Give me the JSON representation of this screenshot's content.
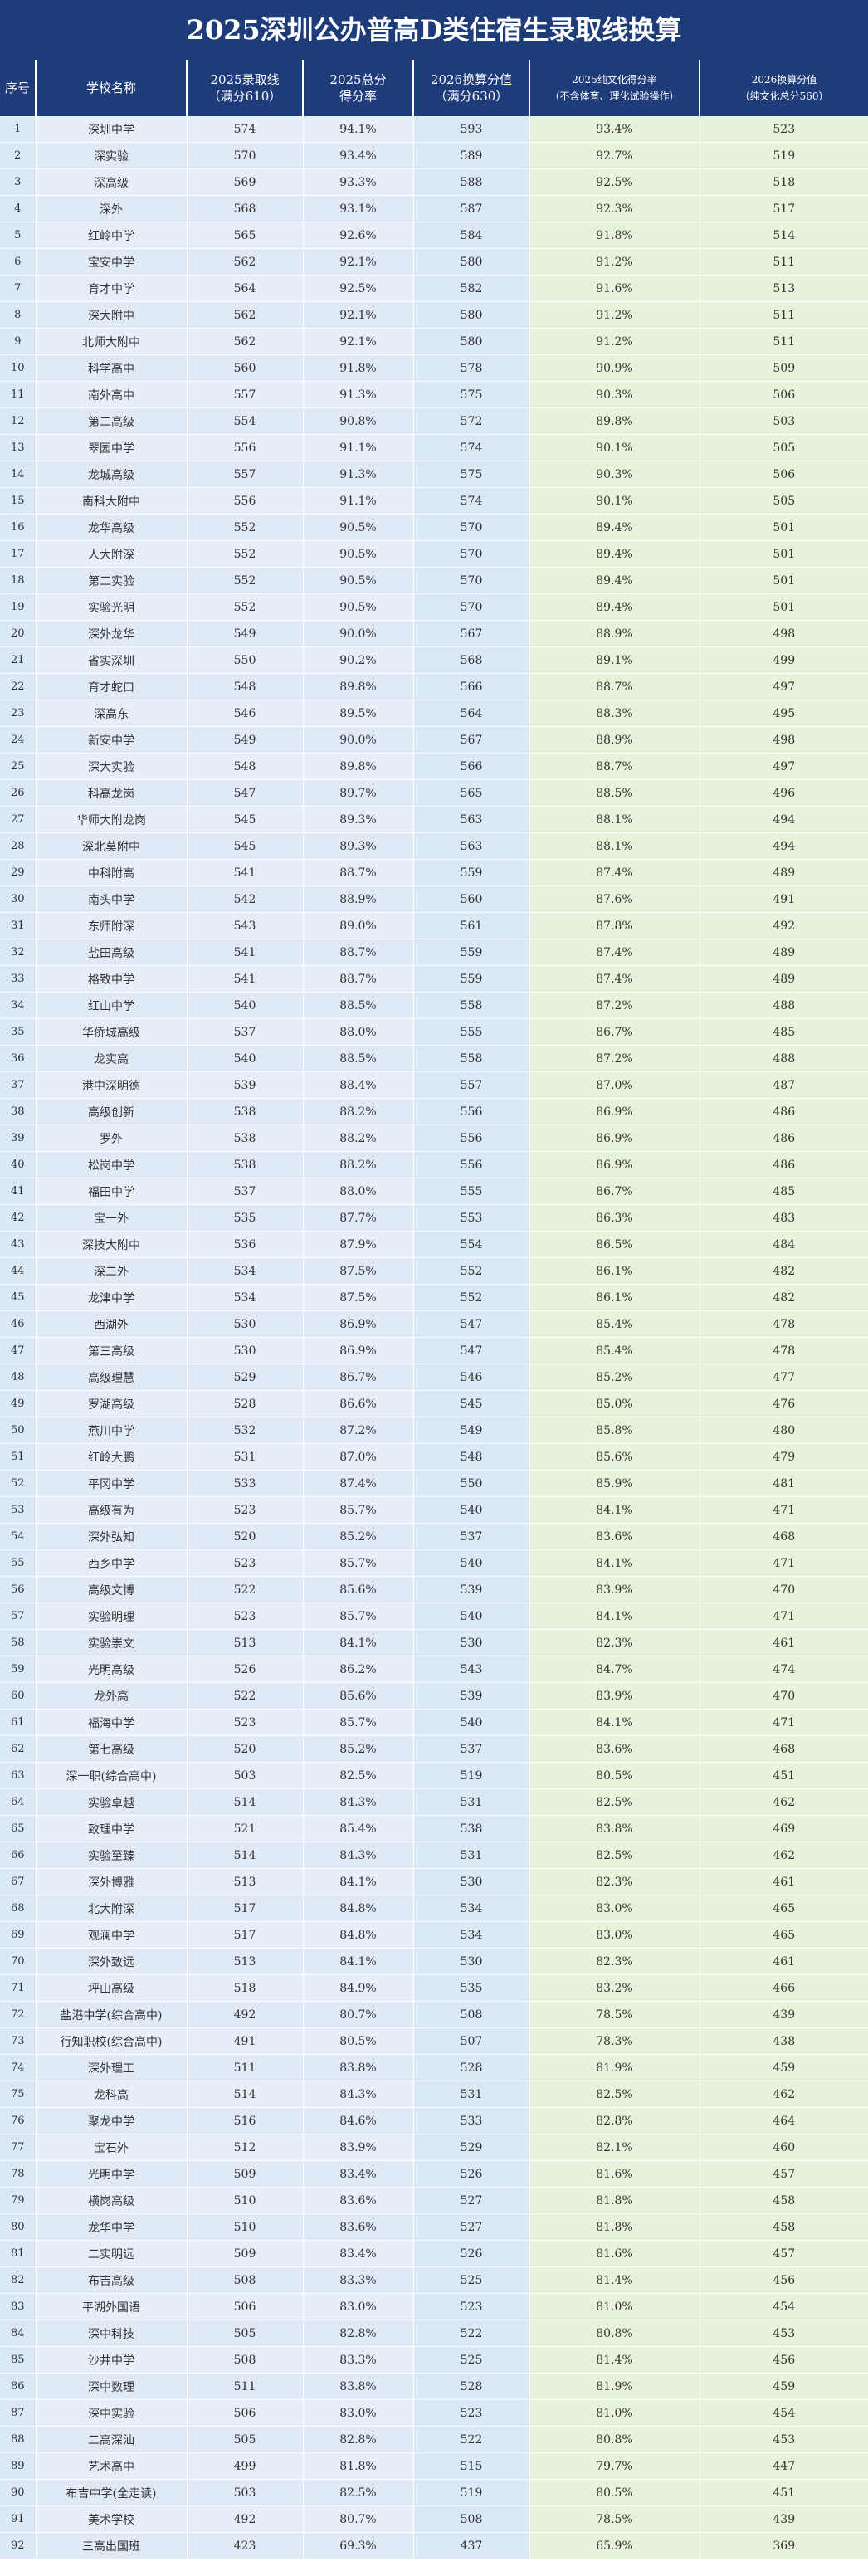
{
  "title": "2025深圳公办普高D类住宿生录取线换算",
  "colors": {
    "header": "#1f3c7a",
    "left": "#dbe8f6",
    "mid": "#e6eef9",
    "right": "#e8f3dc"
  },
  "headers": [
    {
      "line1": "序号",
      "line2": ""
    },
    {
      "line1": "学校名称",
      "line2": ""
    },
    {
      "line1": "2025录取线",
      "line2": "（满分610）"
    },
    {
      "line1": "2025总分",
      "line2": "得分率"
    },
    {
      "line1": "2026换算分值",
      "line2": "（满分630）"
    },
    {
      "line1": "2025纯文化得分率",
      "line2": "（不含体育、理化试验操作）"
    },
    {
      "line1": "2026换算分值",
      "line2": "（纯文化总分560）"
    }
  ],
  "rows": [
    [
      "1",
      "深圳中学",
      "574",
      "94.1%",
      "593",
      "93.4%",
      "523"
    ],
    [
      "2",
      "深实验",
      "570",
      "93.4%",
      "589",
      "92.7%",
      "519"
    ],
    [
      "3",
      "深高级",
      "569",
      "93.3%",
      "588",
      "92.5%",
      "518"
    ],
    [
      "4",
      "深外",
      "568",
      "93.1%",
      "587",
      "92.3%",
      "517"
    ],
    [
      "5",
      "红岭中学",
      "565",
      "92.6%",
      "584",
      "91.8%",
      "514"
    ],
    [
      "6",
      "宝安中学",
      "562",
      "92.1%",
      "580",
      "91.2%",
      "511"
    ],
    [
      "7",
      "育才中学",
      "564",
      "92.5%",
      "582",
      "91.6%",
      "513"
    ],
    [
      "8",
      "深大附中",
      "562",
      "92.1%",
      "580",
      "91.2%",
      "511"
    ],
    [
      "9",
      "北师大附中",
      "562",
      "92.1%",
      "580",
      "91.2%",
      "511"
    ],
    [
      "10",
      "科学高中",
      "560",
      "91.8%",
      "578",
      "90.9%",
      "509"
    ],
    [
      "11",
      "南外高中",
      "557",
      "91.3%",
      "575",
      "90.3%",
      "506"
    ],
    [
      "12",
      "第二高级",
      "554",
      "90.8%",
      "572",
      "89.8%",
      "503"
    ],
    [
      "13",
      "翠园中学",
      "556",
      "91.1%",
      "574",
      "90.1%",
      "505"
    ],
    [
      "14",
      "龙城高级",
      "557",
      "91.3%",
      "575",
      "90.3%",
      "506"
    ],
    [
      "15",
      "南科大附中",
      "556",
      "91.1%",
      "574",
      "90.1%",
      "505"
    ],
    [
      "16",
      "龙华高级",
      "552",
      "90.5%",
      "570",
      "89.4%",
      "501"
    ],
    [
      "17",
      "人大附深",
      "552",
      "90.5%",
      "570",
      "89.4%",
      "501"
    ],
    [
      "18",
      "第二实验",
      "552",
      "90.5%",
      "570",
      "89.4%",
      "501"
    ],
    [
      "19",
      "实验光明",
      "552",
      "90.5%",
      "570",
      "89.4%",
      "501"
    ],
    [
      "20",
      "深外龙华",
      "549",
      "90.0%",
      "567",
      "88.9%",
      "498"
    ],
    [
      "21",
      "省实深圳",
      "550",
      "90.2%",
      "568",
      "89.1%",
      "499"
    ],
    [
      "22",
      "育才蛇口",
      "548",
      "89.8%",
      "566",
      "88.7%",
      "497"
    ],
    [
      "23",
      "深高东",
      "546",
      "89.5%",
      "564",
      "88.3%",
      "495"
    ],
    [
      "24",
      "新安中学",
      "549",
      "90.0%",
      "567",
      "88.9%",
      "498"
    ],
    [
      "25",
      "深大实验",
      "548",
      "89.8%",
      "566",
      "88.7%",
      "497"
    ],
    [
      "26",
      "科高龙岗",
      "547",
      "89.7%",
      "565",
      "88.5%",
      "496"
    ],
    [
      "27",
      "华师大附龙岗",
      "545",
      "89.3%",
      "563",
      "88.1%",
      "494"
    ],
    [
      "28",
      "深北莫附中",
      "545",
      "89.3%",
      "563",
      "88.1%",
      "494"
    ],
    [
      "29",
      "中科附高",
      "541",
      "88.7%",
      "559",
      "87.4%",
      "489"
    ],
    [
      "30",
      "南头中学",
      "542",
      "88.9%",
      "560",
      "87.6%",
      "491"
    ],
    [
      "31",
      "东师附深",
      "543",
      "89.0%",
      "561",
      "87.8%",
      "492"
    ],
    [
      "32",
      "盐田高级",
      "541",
      "88.7%",
      "559",
      "87.4%",
      "489"
    ],
    [
      "33",
      "格致中学",
      "541",
      "88.7%",
      "559",
      "87.4%",
      "489"
    ],
    [
      "34",
      "红山中学",
      "540",
      "88.5%",
      "558",
      "87.2%",
      "488"
    ],
    [
      "35",
      "华侨城高级",
      "537",
      "88.0%",
      "555",
      "86.7%",
      "485"
    ],
    [
      "36",
      "龙实高",
      "540",
      "88.5%",
      "558",
      "87.2%",
      "488"
    ],
    [
      "37",
      "港中深明德",
      "539",
      "88.4%",
      "557",
      "87.0%",
      "487"
    ],
    [
      "38",
      "高级创新",
      "538",
      "88.2%",
      "556",
      "86.9%",
      "486"
    ],
    [
      "39",
      "罗外",
      "538",
      "88.2%",
      "556",
      "86.9%",
      "486"
    ],
    [
      "40",
      "松岗中学",
      "538",
      "88.2%",
      "556",
      "86.9%",
      "486"
    ],
    [
      "41",
      "福田中学",
      "537",
      "88.0%",
      "555",
      "86.7%",
      "485"
    ],
    [
      "42",
      "宝一外",
      "535",
      "87.7%",
      "553",
      "86.3%",
      "483"
    ],
    [
      "43",
      "深技大附中",
      "536",
      "87.9%",
      "554",
      "86.5%",
      "484"
    ],
    [
      "44",
      "深二外",
      "534",
      "87.5%",
      "552",
      "86.1%",
      "482"
    ],
    [
      "45",
      "龙津中学",
      "534",
      "87.5%",
      "552",
      "86.1%",
      "482"
    ],
    [
      "46",
      "西湖外",
      "530",
      "86.9%",
      "547",
      "85.4%",
      "478"
    ],
    [
      "47",
      "第三高级",
      "530",
      "86.9%",
      "547",
      "85.4%",
      "478"
    ],
    [
      "48",
      "高级理慧",
      "529",
      "86.7%",
      "546",
      "85.2%",
      "477"
    ],
    [
      "49",
      "罗湖高级",
      "528",
      "86.6%",
      "545",
      "85.0%",
      "476"
    ],
    [
      "50",
      "燕川中学",
      "532",
      "87.2%",
      "549",
      "85.8%",
      "480"
    ],
    [
      "51",
      "红岭大鹏",
      "531",
      "87.0%",
      "548",
      "85.6%",
      "479"
    ],
    [
      "52",
      "平冈中学",
      "533",
      "87.4%",
      "550",
      "85.9%",
      "481"
    ],
    [
      "53",
      "高级有为",
      "523",
      "85.7%",
      "540",
      "84.1%",
      "471"
    ],
    [
      "54",
      "深外弘知",
      "520",
      "85.2%",
      "537",
      "83.6%",
      "468"
    ],
    [
      "55",
      "西乡中学",
      "523",
      "85.7%",
      "540",
      "84.1%",
      "471"
    ],
    [
      "56",
      "高级文博",
      "522",
      "85.6%",
      "539",
      "83.9%",
      "470"
    ],
    [
      "57",
      "实验明理",
      "523",
      "85.7%",
      "540",
      "84.1%",
      "471"
    ],
    [
      "58",
      "实验崇文",
      "513",
      "84.1%",
      "530",
      "82.3%",
      "461"
    ],
    [
      "59",
      "光明高级",
      "526",
      "86.2%",
      "543",
      "84.7%",
      "474"
    ],
    [
      "60",
      "龙外高",
      "522",
      "85.6%",
      "539",
      "83.9%",
      "470"
    ],
    [
      "61",
      "福海中学",
      "523",
      "85.7%",
      "540",
      "84.1%",
      "471"
    ],
    [
      "62",
      "第七高级",
      "520",
      "85.2%",
      "537",
      "83.6%",
      "468"
    ],
    [
      "63",
      "深一职(综合高中)",
      "503",
      "82.5%",
      "519",
      "80.5%",
      "451"
    ],
    [
      "64",
      "实验卓越",
      "514",
      "84.3%",
      "531",
      "82.5%",
      "462"
    ],
    [
      "65",
      "致理中学",
      "521",
      "85.4%",
      "538",
      "83.8%",
      "469"
    ],
    [
      "66",
      "实验至臻",
      "514",
      "84.3%",
      "531",
      "82.5%",
      "462"
    ],
    [
      "67",
      "深外博雅",
      "513",
      "84.1%",
      "530",
      "82.3%",
      "461"
    ],
    [
      "68",
      "北大附深",
      "517",
      "84.8%",
      "534",
      "83.0%",
      "465"
    ],
    [
      "69",
      "观澜中学",
      "517",
      "84.8%",
      "534",
      "83.0%",
      "465"
    ],
    [
      "70",
      "深外致远",
      "513",
      "84.1%",
      "530",
      "82.3%",
      "461"
    ],
    [
      "71",
      "坪山高级",
      "518",
      "84.9%",
      "535",
      "83.2%",
      "466"
    ],
    [
      "72",
      "盐港中学(综合高中)",
      "492",
      "80.7%",
      "508",
      "78.5%",
      "439"
    ],
    [
      "73",
      "行知职校(综合高中)",
      "491",
      "80.5%",
      "507",
      "78.3%",
      "438"
    ],
    [
      "74",
      "深外理工",
      "511",
      "83.8%",
      "528",
      "81.9%",
      "459"
    ],
    [
      "75",
      "龙科高",
      "514",
      "84.3%",
      "531",
      "82.5%",
      "462"
    ],
    [
      "76",
      "聚龙中学",
      "516",
      "84.6%",
      "533",
      "82.8%",
      "464"
    ],
    [
      "77",
      "宝石外",
      "512",
      "83.9%",
      "529",
      "82.1%",
      "460"
    ],
    [
      "78",
      "光明中学",
      "509",
      "83.4%",
      "526",
      "81.6%",
      "457"
    ],
    [
      "79",
      "横岗高级",
      "510",
      "83.6%",
      "527",
      "81.8%",
      "458"
    ],
    [
      "80",
      "龙华中学",
      "510",
      "83.6%",
      "527",
      "81.8%",
      "458"
    ],
    [
      "81",
      "二实明远",
      "509",
      "83.4%",
      "526",
      "81.6%",
      "457"
    ],
    [
      "82",
      "布吉高级",
      "508",
      "83.3%",
      "525",
      "81.4%",
      "456"
    ],
    [
      "83",
      "平湖外国语",
      "506",
      "83.0%",
      "523",
      "81.0%",
      "454"
    ],
    [
      "84",
      "深中科技",
      "505",
      "82.8%",
      "522",
      "80.8%",
      "453"
    ],
    [
      "85",
      "沙井中学",
      "508",
      "83.3%",
      "525",
      "81.4%",
      "456"
    ],
    [
      "86",
      "深中数理",
      "511",
      "83.8%",
      "528",
      "81.9%",
      "459"
    ],
    [
      "87",
      "深中实验",
      "506",
      "83.0%",
      "523",
      "81.0%",
      "454"
    ],
    [
      "88",
      "二高深汕",
      "505",
      "82.8%",
      "522",
      "80.8%",
      "453"
    ],
    [
      "89",
      "艺术高中",
      "499",
      "81.8%",
      "515",
      "79.7%",
      "447"
    ],
    [
      "90",
      "布吉中学(全走读)",
      "503",
      "82.5%",
      "519",
      "80.5%",
      "451"
    ],
    [
      "91",
      "美术学校",
      "492",
      "80.7%",
      "508",
      "78.5%",
      "439"
    ],
    [
      "92",
      "三高出国班",
      "423",
      "69.3%",
      "437",
      "65.9%",
      "369"
    ]
  ]
}
